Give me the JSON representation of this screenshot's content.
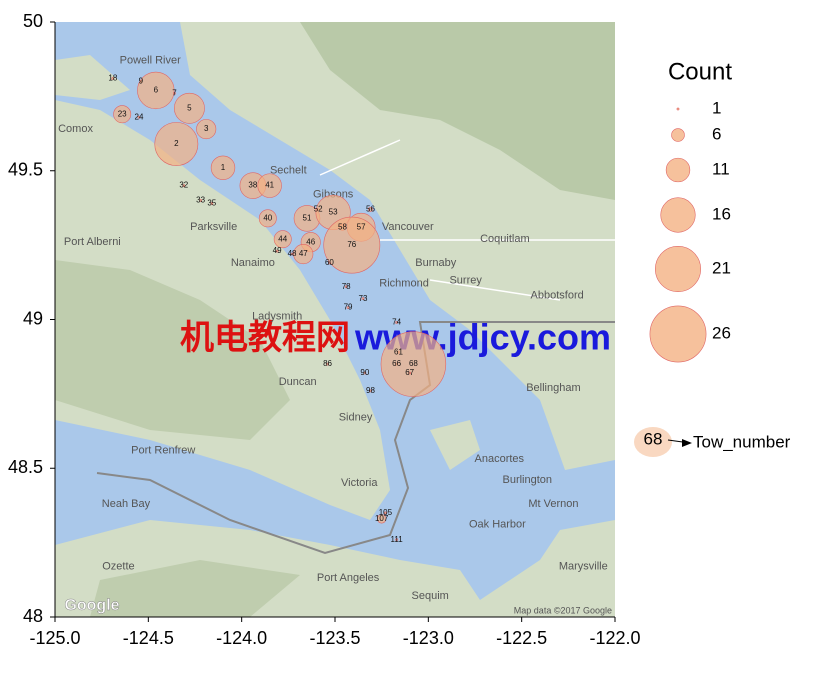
{
  "chart_data": {
    "type": "bubble",
    "xlim": [
      -125,
      -122
    ],
    "xticks": [
      {
        "value": -125,
        "label": "-125.0"
      },
      {
        "value": -124.5,
        "label": "-124.5"
      },
      {
        "value": -124,
        "label": "-124.0"
      },
      {
        "value": -123.5,
        "label": "-123.5"
      },
      {
        "value": -123,
        "label": "-123.0"
      },
      {
        "value": -122.5,
        "label": "-122.5"
      },
      {
        "value": -122,
        "label": "-122.0"
      }
    ],
    "ylim": [
      48,
      50
    ],
    "yticks": [
      48,
      48.5,
      49,
      49.5,
      50
    ],
    "color": "#f4b183",
    "edge_color": "#e06666",
    "labels": [
      "18",
      "9",
      "6",
      "7",
      "5",
      "23",
      "24",
      "3",
      "2",
      "1",
      "32",
      "33",
      "35",
      "38",
      "41",
      "40",
      "52",
      "51",
      "53",
      "56",
      "58",
      "57",
      "44",
      "46",
      "49",
      "48",
      "47",
      "76",
      "60",
      "78",
      "79",
      "73",
      "74",
      "86",
      "61",
      "66",
      "68",
      "67",
      "90",
      "98",
      "105",
      "107",
      "111"
    ],
    "x": [
      -124.69,
      -124.54,
      -124.46,
      -124.36,
      -124.28,
      -124.64,
      -124.55,
      -124.19,
      -124.35,
      -124.1,
      -124.31,
      -124.22,
      -124.16,
      -123.94,
      -123.85,
      -123.86,
      -123.59,
      -123.65,
      -123.51,
      -123.31,
      -123.46,
      -123.36,
      -123.78,
      -123.63,
      -123.81,
      -123.73,
      -123.67,
      -123.41,
      -123.53,
      -123.44,
      -123.43,
      -123.35,
      -123.17,
      -123.54,
      -123.16,
      -123.17,
      -123.08,
      -123.1,
      -123.34,
      -123.31,
      -123.23,
      -123.25,
      -123.17
    ],
    "y": [
      49.81,
      49.8,
      49.77,
      49.76,
      49.71,
      49.69,
      49.68,
      49.64,
      49.59,
      49.51,
      49.45,
      49.4,
      49.39,
      49.45,
      49.45,
      49.34,
      49.37,
      49.34,
      49.36,
      49.37,
      49.31,
      49.31,
      49.27,
      49.26,
      49.23,
      49.22,
      49.22,
      49.25,
      49.19,
      49.11,
      49.04,
      49.07,
      48.99,
      48.85,
      48.89,
      48.85,
      48.85,
      48.82,
      48.82,
      48.76,
      48.35,
      48.33,
      48.26
    ],
    "size": [
      1,
      1,
      17,
      1,
      14,
      8,
      1,
      9,
      20,
      11,
      1,
      1,
      1,
      12,
      11,
      8,
      1,
      12,
      16,
      2,
      3,
      13,
      8,
      9,
      1,
      1,
      9,
      26,
      1,
      1,
      1,
      1,
      1,
      1,
      1,
      1,
      30,
      1,
      1,
      1,
      1,
      4,
      1
    ],
    "size_legend": {
      "title": "Count",
      "values": [
        1,
        6,
        11,
        16,
        21,
        26
      ]
    },
    "label_legend": {
      "sample": "68",
      "text": "Tow_number"
    },
    "watermark": [
      "机电教程网",
      "www.jdjcy.com"
    ],
    "map_labels": [
      {
        "text": "Powell River",
        "x": -124.49,
        "y": 49.87
      },
      {
        "text": "Comox",
        "x": -124.89,
        "y": 49.64
      },
      {
        "text": "Sechelt",
        "x": -123.75,
        "y": 49.5
      },
      {
        "text": "Gibsons",
        "x": -123.51,
        "y": 49.42
      },
      {
        "text": "Vancouver",
        "x": -123.11,
        "y": 49.31
      },
      {
        "text": "Coquitlam",
        "x": -122.59,
        "y": 49.27
      },
      {
        "text": "Burnaby",
        "x": -122.96,
        "y": 49.19
      },
      {
        "text": "Richmond",
        "x": -123.13,
        "y": 49.12
      },
      {
        "text": "Surrey",
        "x": -122.8,
        "y": 49.13
      },
      {
        "text": "Abbotsford",
        "x": -122.31,
        "y": 49.08
      },
      {
        "text": "Parksville",
        "x": -124.15,
        "y": 49.31
      },
      {
        "text": "Port Alberni",
        "x": -124.8,
        "y": 49.26
      },
      {
        "text": "Nanaimo",
        "x": -123.94,
        "y": 49.19
      },
      {
        "text": "Ladysmith",
        "x": -123.81,
        "y": 49.01
      },
      {
        "text": "Duncan",
        "x": -123.7,
        "y": 48.79
      },
      {
        "text": "Sidney",
        "x": -123.39,
        "y": 48.67
      },
      {
        "text": "Victoria",
        "x": -123.37,
        "y": 48.45
      },
      {
        "text": "Bellingham",
        "x": -122.33,
        "y": 48.77
      },
      {
        "text": "Anacortes",
        "x": -122.62,
        "y": 48.53
      },
      {
        "text": "Burlington",
        "x": -122.47,
        "y": 48.46
      },
      {
        "text": "Mt Vernon",
        "x": -122.33,
        "y": 48.38
      },
      {
        "text": "Oak Harbor",
        "x": -122.63,
        "y": 48.31
      },
      {
        "text": "Port Renfrew",
        "x": -124.42,
        "y": 48.56
      },
      {
        "text": "Neah Bay",
        "x": -124.62,
        "y": 48.38
      },
      {
        "text": "Ozette",
        "x": -124.66,
        "y": 48.17
      },
      {
        "text": "Port Angeles",
        "x": -123.43,
        "y": 48.13
      },
      {
        "text": "Sequim",
        "x": -122.99,
        "y": 48.07
      },
      {
        "text": "Marysville",
        "x": -122.17,
        "y": 48.17
      }
    ],
    "logo": "Google",
    "attribution": "Map data ©2017 Google"
  }
}
